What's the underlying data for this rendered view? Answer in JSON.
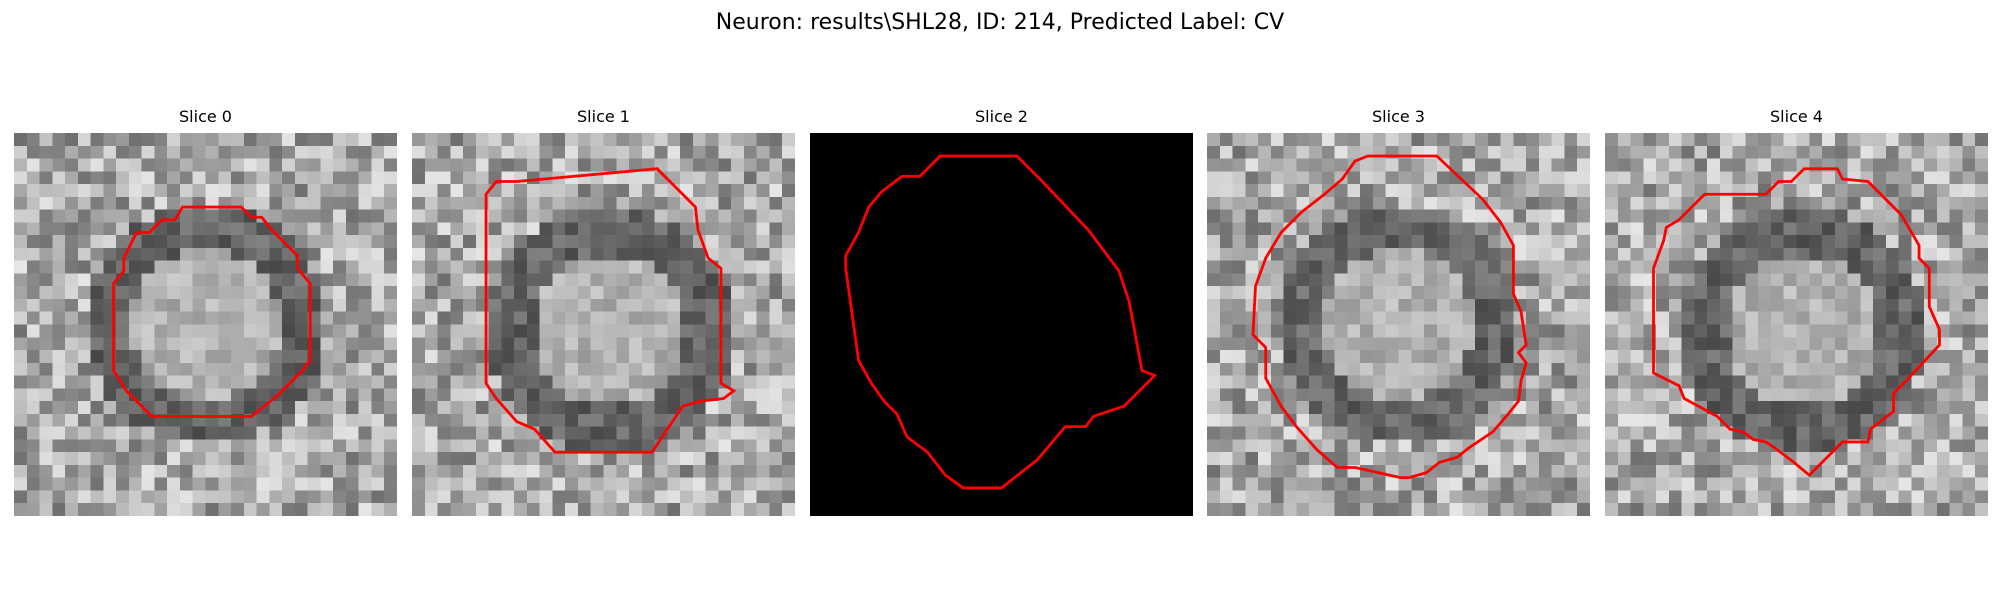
{
  "figure": {
    "title": "Neuron: results\\SHL28, ID: 214, Predicted Label: CV"
  },
  "contour_color": "#ff0000",
  "panels": [
    {
      "title": "Slice 0",
      "image": "grayscale-neuron-slice",
      "contour": "red-roi-outline"
    },
    {
      "title": "Slice 1",
      "image": "grayscale-neuron-slice",
      "contour": "red-roi-outline"
    },
    {
      "title": "Slice 2",
      "image": "black-empty-slice",
      "contour": "red-roi-outline"
    },
    {
      "title": "Slice 3",
      "image": "grayscale-neuron-slice",
      "contour": "red-roi-outline"
    },
    {
      "title": "Slice 4",
      "image": "grayscale-neuron-slice",
      "contour": "red-roi-outline"
    }
  ]
}
